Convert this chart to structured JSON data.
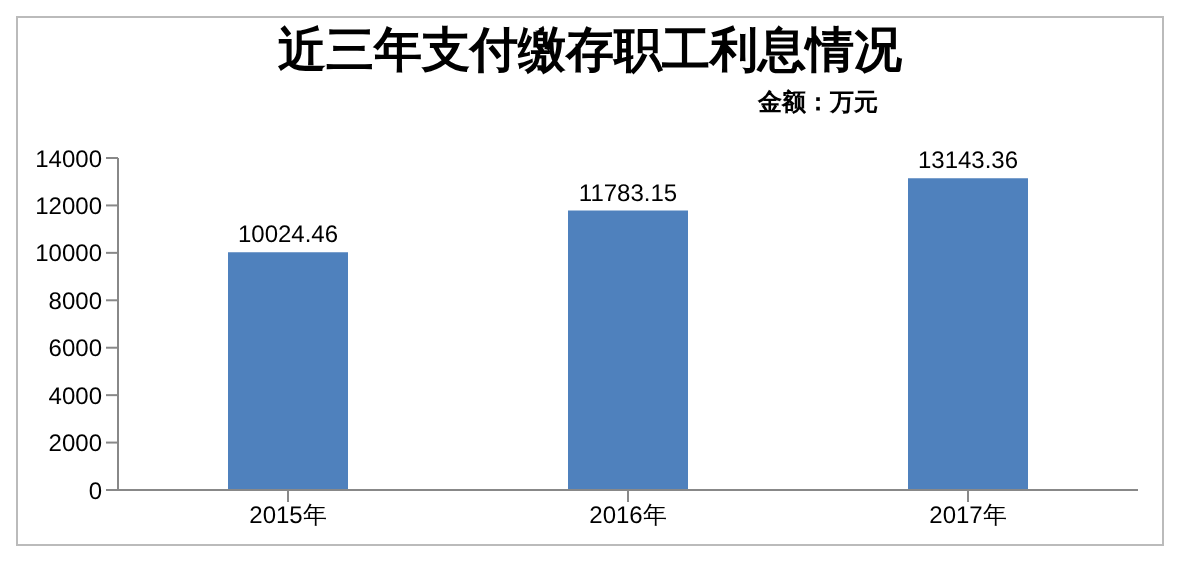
{
  "chart_data": {
    "type": "bar",
    "title": "近三年支付缴存职工利息情况",
    "subtitle": "金额：万元",
    "categories": [
      "2015年",
      "2016年",
      "2017年"
    ],
    "values": [
      10024.46,
      11783.15,
      13143.36
    ],
    "color": "#4f81bd",
    "ylim": [
      0,
      14000
    ],
    "yticks": [
      0,
      2000,
      4000,
      6000,
      8000,
      10000,
      12000,
      14000
    ],
    "grid": false,
    "data_labels": true
  }
}
